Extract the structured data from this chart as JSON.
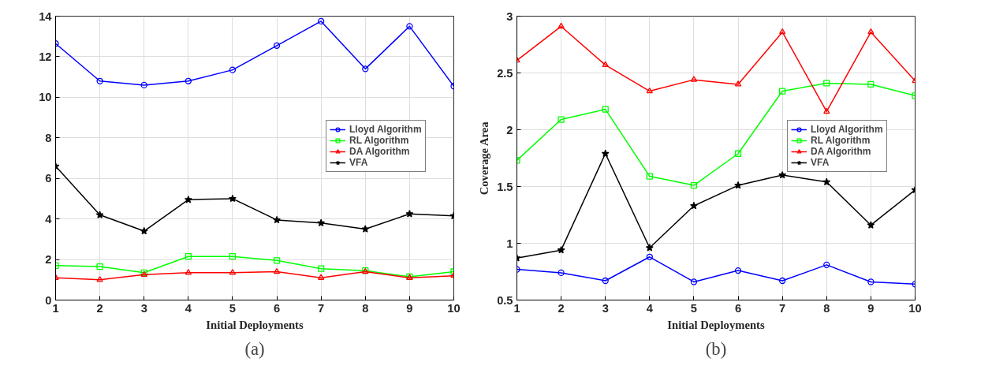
{
  "chart_data": [
    {
      "type": "line",
      "xlabel": "Initial Deployments",
      "x": [
        1,
        2,
        3,
        4,
        5,
        6,
        7,
        8,
        9,
        10
      ],
      "xlim": [
        1,
        10
      ],
      "xticks": [
        1,
        2,
        3,
        4,
        5,
        6,
        7,
        8,
        9,
        10
      ],
      "ylim": [
        0,
        14
      ],
      "yticks": [
        0,
        2,
        4,
        6,
        8,
        10,
        12,
        14
      ],
      "grid": true,
      "legend": "right",
      "line_style": "solid",
      "annotations": [
        "(a)"
      ],
      "series": [
        {
          "name": "Lloyd Algorithm",
          "color": "#0000ff",
          "marker": "circle",
          "values": [
            12.65,
            10.8,
            10.6,
            10.8,
            11.35,
            12.55,
            13.75,
            11.4,
            13.5,
            10.55
          ]
        },
        {
          "name": "RL Algorithm",
          "color": "#00ff00",
          "marker": "square",
          "values": [
            1.7,
            1.65,
            1.35,
            2.15,
            2.15,
            1.95,
            1.55,
            1.45,
            1.15,
            1.4
          ]
        },
        {
          "name": "DA Algorithm",
          "color": "#ff0000",
          "marker": "triangle",
          "values": [
            1.1,
            1.0,
            1.25,
            1.35,
            1.35,
            1.4,
            1.1,
            1.4,
            1.1,
            1.2
          ]
        },
        {
          "name": "VFA",
          "color": "#000000",
          "marker": "star",
          "values": [
            6.6,
            4.2,
            3.4,
            4.95,
            5.0,
            3.95,
            3.8,
            3.5,
            4.25,
            4.15
          ]
        }
      ]
    },
    {
      "type": "line",
      "xlabel": "Initial Deployments",
      "ylabel": "Coverage Area",
      "x": [
        1,
        2,
        3,
        4,
        5,
        6,
        7,
        8,
        9,
        10
      ],
      "xlim": [
        1,
        10
      ],
      "xticks": [
        1,
        2,
        3,
        4,
        5,
        6,
        7,
        8,
        9,
        10
      ],
      "ylim": [
        0.5,
        3
      ],
      "yticks": [
        0.5,
        1,
        1.5,
        2,
        2.5,
        3
      ],
      "grid": true,
      "legend": "right",
      "line_style": "solid",
      "annotations": [
        "(b)"
      ],
      "series": [
        {
          "name": "Lloyd Algorithm",
          "color": "#0000ff",
          "marker": "circle",
          "values": [
            0.77,
            0.74,
            0.67,
            0.88,
            0.66,
            0.76,
            0.67,
            0.81,
            0.66,
            0.64
          ]
        },
        {
          "name": "RL Algorithm",
          "color": "#00ff00",
          "marker": "square",
          "values": [
            1.73,
            2.09,
            2.18,
            1.59,
            1.51,
            1.79,
            2.34,
            2.41,
            2.4,
            2.3
          ]
        },
        {
          "name": "DA Algorithm",
          "color": "#ff0000",
          "marker": "triangle",
          "values": [
            2.61,
            2.91,
            2.57,
            2.34,
            2.44,
            2.4,
            2.86,
            2.16,
            2.86,
            2.43
          ]
        },
        {
          "name": "VFA",
          "color": "#000000",
          "marker": "star",
          "values": [
            0.87,
            0.94,
            1.79,
            0.96,
            1.33,
            1.51,
            1.6,
            1.54,
            1.16,
            1.47
          ]
        }
      ]
    }
  ]
}
